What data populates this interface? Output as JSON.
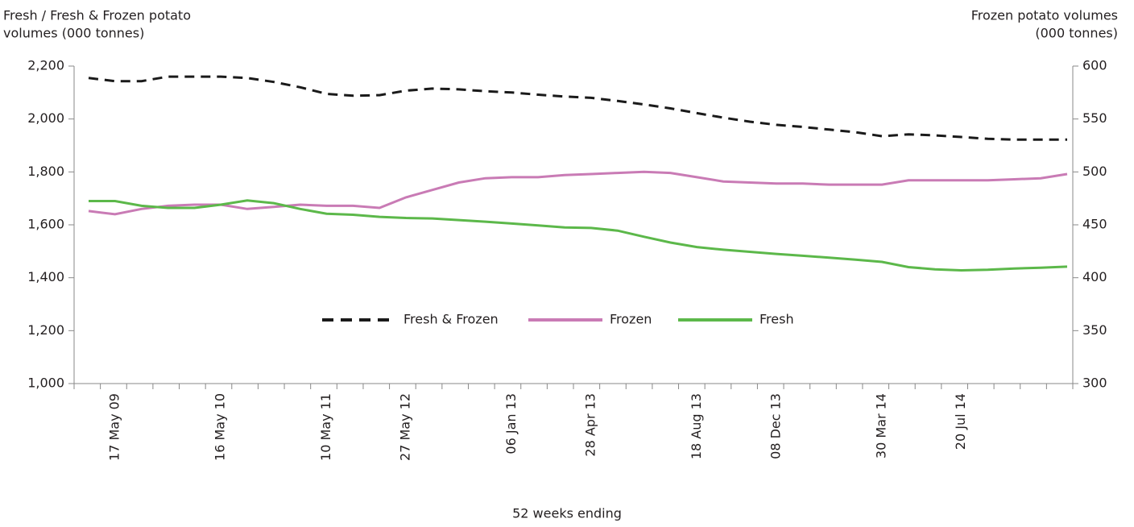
{
  "chart_data": {
    "type": "line",
    "ylabel": [
      "Fresh / Fresh & Frozen potato",
      "volumes (000 tonnes)"
    ],
    "y2label": [
      "Frozen potato volumes",
      "(000 tonnes)"
    ],
    "xlabel": "52 weeks ending",
    "categories": [
      null,
      "17 May 09",
      null,
      null,
      null,
      "16 May 10",
      null,
      null,
      null,
      "10 May 11",
      null,
      null,
      "27 May  12",
      null,
      null,
      null,
      "06 Jan 13",
      null,
      null,
      "28 Apr 13",
      null,
      null,
      null,
      "18 Aug 13",
      null,
      null,
      "08 Dec 13",
      null,
      null,
      null,
      "30 Mar 14",
      null,
      null,
      "20 Jul 14",
      null,
      null,
      null,
      null
    ],
    "series": [
      {
        "name": "Fresh & Frozen",
        "color": "#1a1a1a",
        "dashed": true,
        "values": [
          2155,
          2143,
          2143,
          2160,
          2160,
          2160,
          2155,
          2140,
          2120,
          2095,
          2088,
          2090,
          2107,
          2115,
          2112,
          2105,
          2100,
          2092,
          2085,
          2080,
          2068,
          2055,
          2040,
          2022,
          2005,
          1990,
          1978,
          1970,
          1960,
          1950,
          1935,
          1942,
          1938,
          1932,
          1925,
          1922,
          1922,
          1922
        ]
      },
      {
        "name": "Frozen",
        "color": "#c97bb5",
        "axis": "y2",
        "values": [
          463,
          460,
          465,
          468,
          469,
          469,
          465,
          467,
          469,
          468,
          468,
          466,
          476,
          483,
          490,
          494,
          495,
          495,
          497,
          498,
          499,
          500,
          499,
          495,
          491,
          490,
          489,
          489,
          488,
          488,
          488,
          492,
          492,
          492,
          492,
          493,
          494,
          498
        ]
      },
      {
        "name": "Fresh",
        "color": "#5cb84a",
        "values": [
          1690,
          1690,
          1672,
          1664,
          1664,
          1676,
          1692,
          1682,
          1660,
          1642,
          1638,
          1630,
          1626,
          1624,
          1618,
          1612,
          1605,
          1598,
          1590,
          1588,
          1578,
          1555,
          1533,
          1516,
          1506,
          1498,
          1490,
          1483,
          1476,
          1468,
          1460,
          1440,
          1432,
          1428,
          1430,
          1435,
          1438,
          1442
        ]
      }
    ],
    "ylim": [
      1000,
      2200
    ],
    "yticks": [
      {
        "value": 1000,
        "label": "1,000"
      },
      {
        "value": 1200,
        "label": "1,200"
      },
      {
        "value": 1400,
        "label": "1,400"
      },
      {
        "value": 1600,
        "label": "1,600"
      },
      {
        "value": 1800,
        "label": "1,800"
      },
      {
        "value": 2000,
        "label": "2,000"
      },
      {
        "value": 2200,
        "label": "2,200"
      }
    ],
    "y2lim": [
      300,
      600
    ],
    "y2ticks": [
      300,
      350,
      400,
      450,
      500,
      550,
      600
    ],
    "legend": "center"
  }
}
